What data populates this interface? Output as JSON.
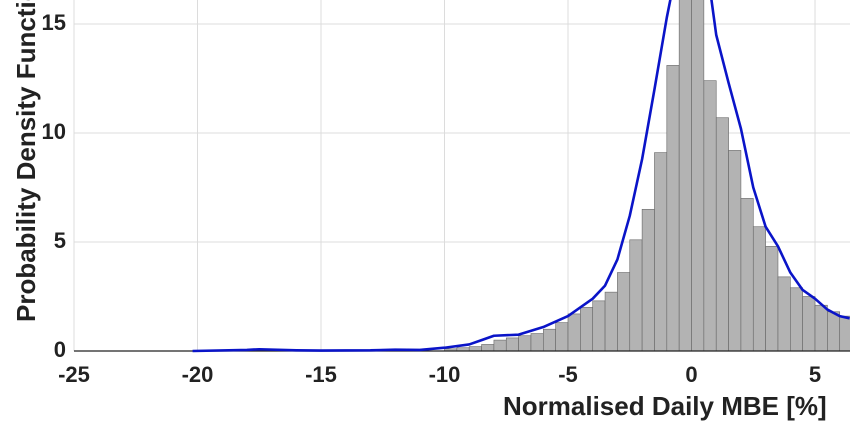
{
  "chart_data": {
    "type": "histogram",
    "xlabel": "Normalised Daily MBE [%]",
    "ylabel": "Probability Density Function",
    "bins": [
      -10,
      -9.5,
      -9,
      -8.5,
      -8,
      -7.5,
      -7,
      -6.5,
      -6,
      -5.5,
      -5,
      -4.5,
      -4,
      -3.5,
      -3,
      -2.5,
      -2,
      -1.5,
      -1,
      -0.5,
      0,
      0.5,
      1,
      1.5,
      2,
      2.5,
      3,
      3.5,
      4,
      4.5,
      5,
      5.5,
      6,
      6.5
    ],
    "counts": [
      0.1,
      0.15,
      0.2,
      0.3,
      0.5,
      0.6,
      0.7,
      0.8,
      1.0,
      1.3,
      1.7,
      2.0,
      2.3,
      2.7,
      3.6,
      5.1,
      6.5,
      9.1,
      13.1,
      17.5,
      17.2,
      12.4,
      10.7,
      9.2,
      7.0,
      5.7,
      4.8,
      3.4,
      2.9,
      2.5,
      2.1,
      1.8,
      1.6
    ],
    "color": "#b3b3b3",
    "edgecolor": "#666666",
    "density": {
      "color": "#0a14c8",
      "x": [
        -20.2,
        -18,
        -17.5,
        -16,
        -15,
        -13,
        -12,
        -11,
        -10,
        -9,
        -8.5,
        -8,
        -7,
        -6,
        -5,
        -4,
        -3.5,
        -3,
        -2.5,
        -2,
        -1.5,
        -1,
        -0.7,
        0,
        0.7,
        1,
        1.5,
        2,
        2.5,
        3,
        3.5,
        4,
        4.5,
        5,
        5.5,
        6,
        6.4
      ],
      "values": [
        0,
        0.05,
        0.08,
        0.03,
        0.02,
        0.03,
        0.06,
        0.05,
        0.15,
        0.3,
        0.5,
        0.7,
        0.75,
        1.1,
        1.6,
        2.4,
        3.0,
        4.2,
        6.2,
        8.8,
        12,
        15.3,
        17,
        18.5,
        17,
        14.5,
        12.3,
        10.2,
        7.5,
        5.7,
        4.8,
        3.6,
        2.8,
        2.4,
        1.9,
        1.6,
        1.5
      ]
    },
    "xlim": [
      -25,
      6.4
    ],
    "ylim": [
      0,
      16.1
    ],
    "xticks": [
      -25,
      -20,
      -15,
      -10,
      -5,
      0,
      5
    ],
    "yticks": [
      0,
      5,
      10,
      15
    ],
    "grid": true
  }
}
